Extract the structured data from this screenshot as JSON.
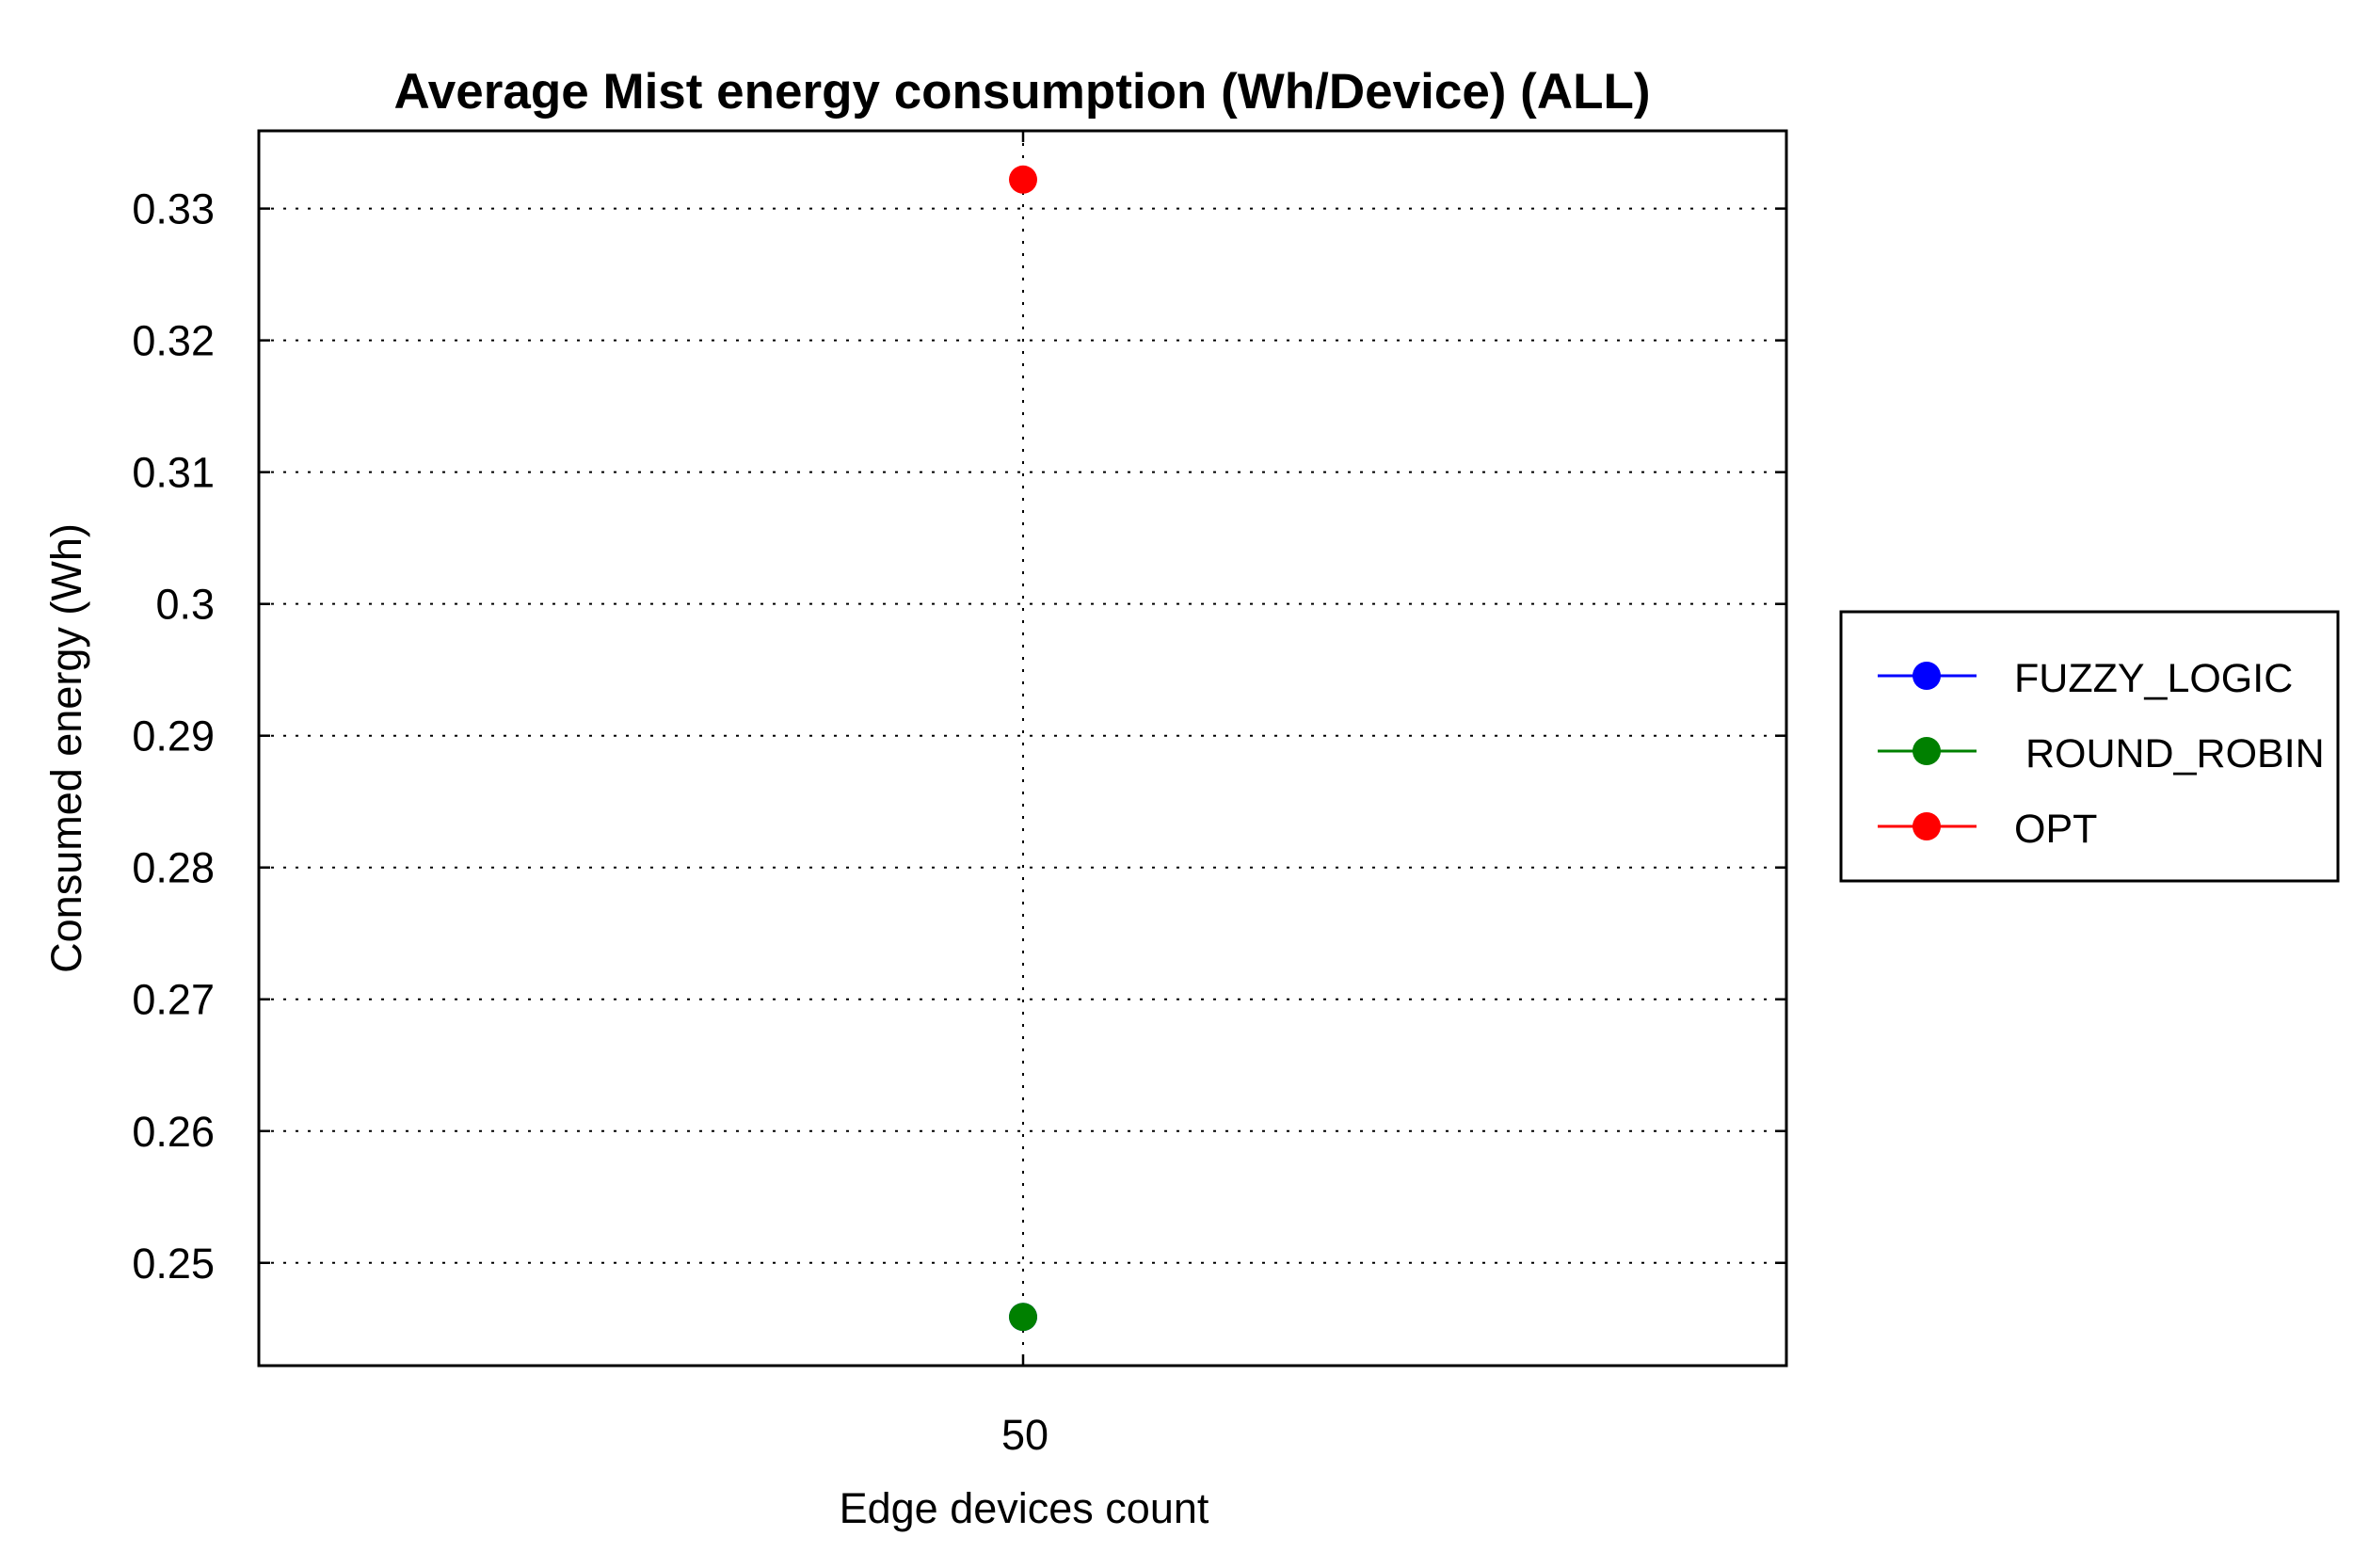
{
  "chart_data": {
    "type": "scatter",
    "title": "Average Mist energy consumption (Wh/Device) (ALL)",
    "xlabel": "Edge devices count",
    "ylabel": "Consumed energy (Wh)",
    "x": [
      50
    ],
    "x_tick_labels": [
      "50"
    ],
    "ylim": [
      0.2422,
      0.3359
    ],
    "y_ticks": [
      0.25,
      0.26,
      0.27,
      0.28,
      0.29,
      0.3,
      0.31,
      0.32,
      0.33
    ],
    "y_tick_labels": [
      "0.25",
      "0.26",
      "0.27",
      "0.28",
      "0.29",
      "0.3",
      "0.31",
      "0.32",
      "0.33"
    ],
    "grid": true,
    "legend_position": "right",
    "series": [
      {
        "name": "FUZZY_LOGIC",
        "color": "#0000ff",
        "values": [
          0.2459
        ]
      },
      {
        "name": " ROUND_ROBIN",
        "color": "#008000",
        "values": [
          0.2459
        ]
      },
      {
        "name": "OPT",
        "color": "#ff0000",
        "values": [
          0.3322
        ]
      }
    ]
  }
}
